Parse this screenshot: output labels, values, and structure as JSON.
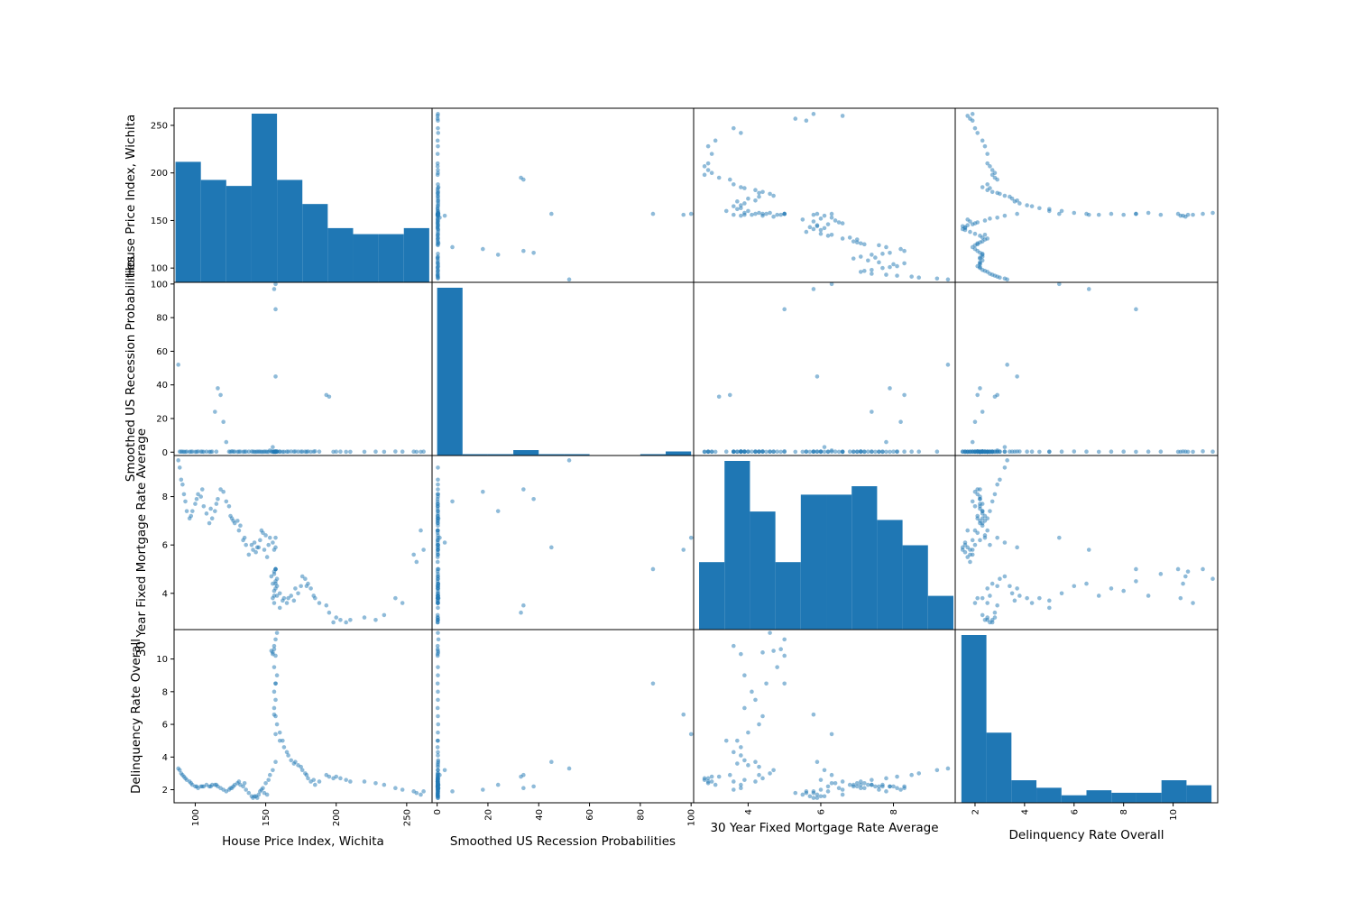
{
  "chart_data": {
    "type": "scatter_matrix",
    "variables": [
      "House Price Index, Wichita",
      "Smoothed US Recession Probabilities",
      "30 Year Fixed Mortgage Rate Average",
      "Delinquency Rate Overall"
    ],
    "ranges": [
      [
        85,
        268
      ],
      [
        -2,
        101
      ],
      [
        2.5,
        9.7
      ],
      [
        1.2,
        11.8
      ]
    ],
    "ticks": [
      [
        100,
        150,
        200,
        250
      ],
      [
        0,
        20,
        40,
        60,
        80,
        100
      ],
      [
        4,
        6,
        8
      ],
      [
        2,
        4,
        6,
        8,
        10
      ]
    ],
    "histograms": [
      {
        "variable": "House Price Index, Wichita",
        "bin_edges": [
          86,
          104,
          122,
          140,
          158,
          176,
          194,
          212,
          230,
          248,
          266
        ],
        "counts": [
          20,
          17,
          16,
          28,
          17,
          13,
          9,
          8,
          8,
          9
        ]
      },
      {
        "variable": "Smoothed US Recession Probabilities",
        "bin_edges": [
          0,
          10,
          20,
          30,
          40,
          50,
          60,
          70,
          80,
          90,
          100
        ],
        "counts": [
          124,
          1,
          1,
          4,
          1,
          1,
          0,
          0,
          1,
          3
        ]
      },
      {
        "variable": "30 Year Fixed Mortgage Rate Average",
        "bin_edges": [
          2.65,
          3.35,
          4.05,
          4.75,
          5.45,
          6.15,
          6.85,
          7.55,
          8.25,
          8.95,
          9.65
        ],
        "counts": [
          8,
          20,
          14,
          8,
          16,
          16,
          17,
          13,
          10,
          4
        ]
      },
      {
        "variable": "Delinquency Rate Overall",
        "bin_edges": [
          1.45,
          2.46,
          3.47,
          4.48,
          5.49,
          6.5,
          7.51,
          8.52,
          9.53,
          10.54,
          11.55
        ],
        "counts": [
          67,
          28,
          9,
          6,
          3,
          5,
          4,
          4,
          9,
          7
        ]
      }
    ],
    "points": [
      [
        262,
        0.3,
        5.8,
        1.9
      ],
      [
        260,
        0.2,
        6.6,
        1.7
      ],
      [
        257,
        0.2,
        5.3,
        1.8
      ],
      [
        242,
        0.4,
        3.8,
        2.1
      ],
      [
        234,
        0.2,
        3.1,
        2.3
      ],
      [
        228,
        0.3,
        2.9,
        2.4
      ],
      [
        220,
        0.2,
        3.0,
        2.5
      ],
      [
        207,
        0.2,
        2.8,
        2.6
      ],
      [
        203,
        0.3,
        2.9,
        2.7
      ],
      [
        198,
        0.2,
        2.8,
        2.7
      ],
      [
        195,
        33.0,
        3.2,
        2.8
      ],
      [
        193,
        34.0,
        3.5,
        2.9
      ],
      [
        188,
        0.3,
        3.6,
        2.5
      ],
      [
        185,
        0.5,
        3.8,
        2.3
      ],
      [
        182,
        0.2,
        4.2,
        2.5
      ],
      [
        180,
        0.4,
        4.4,
        2.7
      ],
      [
        178,
        0.3,
        4.6,
        3.0
      ],
      [
        175,
        0.3,
        4.3,
        3.4
      ],
      [
        173,
        0.3,
        4.0,
        3.5
      ],
      [
        170,
        0.3,
        3.7,
        3.6
      ],
      [
        168,
        0.4,
        3.9,
        3.8
      ],
      [
        165,
        0.3,
        3.6,
        4.3
      ],
      [
        163,
        0.2,
        3.8,
        4.6
      ],
      [
        160,
        0.3,
        3.4,
        5.0
      ],
      [
        158,
        0.4,
        4.3,
        6.0
      ],
      [
        157,
        0.3,
        4.4,
        6.5
      ],
      [
        156,
        0.2,
        3.9,
        7.0
      ],
      [
        156,
        0.3,
        4.1,
        8.0
      ],
      [
        157,
        0.2,
        4.5,
        8.5
      ],
      [
        156,
        0.3,
        4.8,
        9.5
      ],
      [
        157,
        0.2,
        5.0,
        10.2
      ],
      [
        155,
        0.4,
        4.4,
        10.4
      ],
      [
        154,
        0.3,
        4.7,
        10.5
      ],
      [
        156,
        0.2,
        4.9,
        10.6
      ],
      [
        157,
        0.5,
        5.0,
        11.2
      ],
      [
        158,
        0.3,
        4.6,
        11.6
      ],
      [
        157,
        85.0,
        5.0,
        8.5
      ],
      [
        156,
        97.0,
        5.8,
        6.6
      ],
      [
        157,
        100.0,
        6.3,
        5.4
      ],
      [
        157,
        45.0,
        5.9,
        3.7
      ],
      [
        155,
        3.0,
        6.1,
        3.2
      ],
      [
        153,
        1.0,
        6.3,
        2.9
      ],
      [
        152,
        0.2,
        6.0,
        2.6
      ],
      [
        150,
        0.3,
        6.4,
        2.4
      ],
      [
        148,
        0.2,
        6.5,
        2.1
      ],
      [
        146,
        0.3,
        6.2,
        1.9
      ],
      [
        145,
        0.3,
        5.9,
        1.7
      ],
      [
        143,
        0.2,
        5.7,
        1.6
      ],
      [
        141,
        0.3,
        5.8,
        1.5
      ],
      [
        140,
        0.4,
        6.0,
        1.6
      ],
      [
        138,
        0.3,
        5.6,
        1.8
      ],
      [
        136,
        0.3,
        6.0,
        2.0
      ],
      [
        134,
        0.2,
        6.2,
        2.2
      ],
      [
        132,
        0.3,
        6.8,
        2.3
      ],
      [
        130,
        0.2,
        7.0,
        2.4
      ],
      [
        128,
        0.3,
        6.9,
        2.3
      ],
      [
        126,
        0.5,
        7.1,
        2.1
      ],
      [
        124,
        0.3,
        7.6,
        2.0
      ],
      [
        122,
        6.0,
        7.8,
        1.9
      ],
      [
        120,
        18.0,
        8.2,
        2.0
      ],
      [
        118,
        34.0,
        8.3,
        2.1
      ],
      [
        116,
        38.0,
        7.9,
        2.2
      ],
      [
        114,
        24.0,
        7.4,
        2.3
      ],
      [
        112,
        0.3,
        7.1,
        2.3
      ],
      [
        110,
        0.2,
        6.9,
        2.2
      ],
      [
        108,
        0.3,
        7.3,
        2.3
      ],
      [
        106,
        0.2,
        7.6,
        2.2
      ],
      [
        104,
        0.3,
        8.0,
        2.2
      ],
      [
        102,
        0.4,
        8.1,
        2.1
      ],
      [
        100,
        0.2,
        7.7,
        2.2
      ],
      [
        98,
        0.3,
        7.4,
        2.3
      ],
      [
        96,
        0.2,
        7.1,
        2.5
      ],
      [
        94,
        0.3,
        7.4,
        2.6
      ],
      [
        92,
        0.2,
        8.1,
        2.8
      ],
      [
        90,
        0.3,
        8.7,
        3.0
      ],
      [
        89,
        0.3,
        9.2,
        3.2
      ],
      [
        88,
        52.0,
        9.5,
        3.3
      ],
      [
        131,
        0.3,
        6.6,
        2.5
      ],
      [
        135,
        0.3,
        6.3,
        2.4
      ],
      [
        147,
        0.2,
        6.6,
        2.0
      ],
      [
        149,
        0.3,
        5.8,
        1.8
      ],
      [
        151,
        0.2,
        5.5,
        1.7
      ],
      [
        160,
        0.3,
        4.0,
        5.5
      ],
      [
        162,
        0.2,
        3.7,
        5.0
      ],
      [
        166,
        0.3,
        3.8,
        4.1
      ],
      [
        171,
        0.4,
        4.2,
        3.7
      ],
      [
        176,
        0.3,
        4.7,
        3.2
      ],
      [
        179,
        0.2,
        4.3,
        2.9
      ],
      [
        184,
        0.3,
        3.9,
        2.6
      ],
      [
        200,
        0.3,
        3.0,
        2.8
      ],
      [
        210,
        0.2,
        2.9,
        2.5
      ],
      [
        247,
        0.3,
        3.6,
        2.0
      ],
      [
        255,
        0.3,
        5.6,
        1.9
      ],
      [
        158,
        0.3,
        3.9,
        9.0
      ],
      [
        157,
        0.3,
        4.2,
        7.5
      ],
      [
        156,
        0.2,
        3.6,
        10.8
      ],
      [
        155,
        0.2,
        3.8,
        10.3
      ],
      [
        144,
        0.3,
        5.9,
        1.5
      ],
      [
        142,
        0.2,
        6.1,
        1.6
      ],
      [
        127,
        0.3,
        7.0,
        2.2
      ],
      [
        125,
        0.2,
        7.2,
        2.1
      ],
      [
        115,
        0.3,
        7.7,
        2.3
      ],
      [
        111,
        0.2,
        7.5,
        2.2
      ],
      [
        105,
        0.3,
        8.3,
        2.2
      ],
      [
        101,
        0.2,
        7.9,
        2.2
      ],
      [
        97,
        0.3,
        7.2,
        2.4
      ],
      [
        93,
        0.2,
        7.8,
        2.7
      ],
      [
        91,
        0.3,
        8.5,
        2.9
      ]
    ],
    "title": "",
    "grid": false,
    "legend": "none",
    "histogram_color": "#1f77b4",
    "point_color": "#1f77b4",
    "point_alpha": 0.5
  }
}
